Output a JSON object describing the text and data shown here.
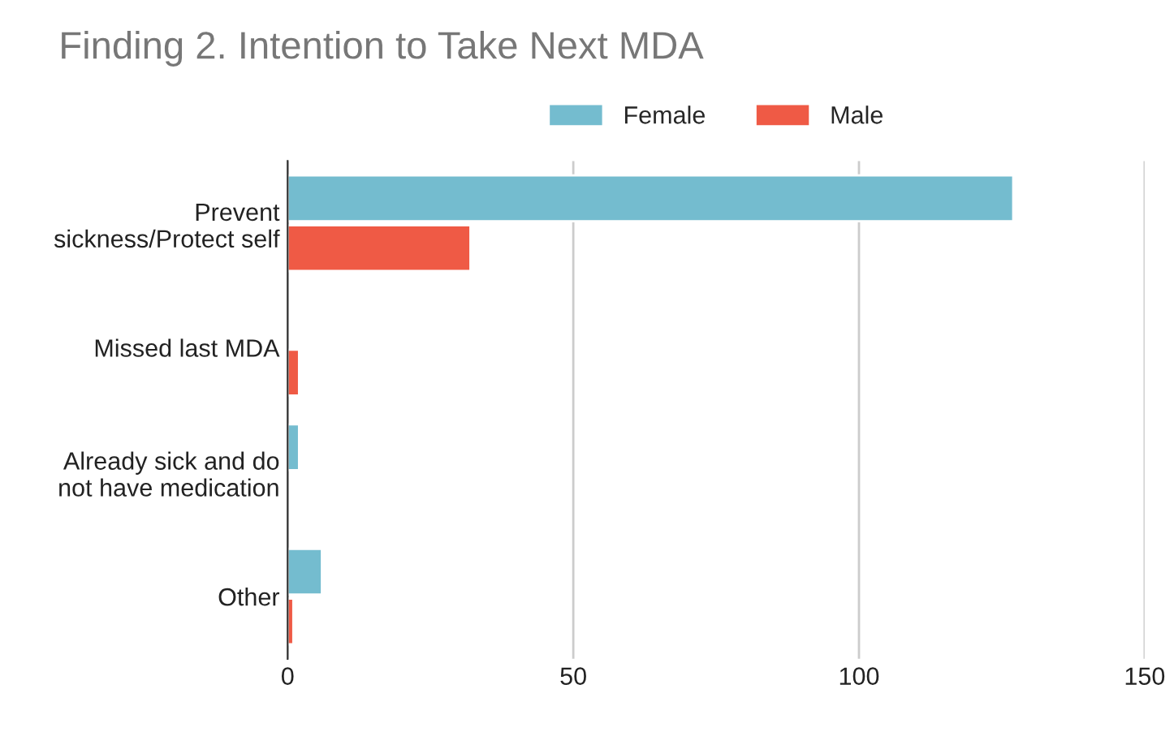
{
  "chart_data": {
    "type": "bar",
    "orientation": "horizontal",
    "title": "Finding 2. Intention to Take Next MDA",
    "categories": [
      "Prevent\nsickness/Protect self",
      "Missed last MDA",
      "Already sick and do\nnot have medication",
      "Other"
    ],
    "series": [
      {
        "name": "Female",
        "color": "#74bccf",
        "values": [
          127,
          null,
          2,
          6
        ]
      },
      {
        "name": "Male",
        "color": "#ef5a45",
        "values": [
          32,
          2,
          null,
          1
        ]
      }
    ],
    "xlim": [
      0,
      150
    ],
    "xticks": [
      0,
      50,
      100,
      150
    ],
    "grid": "x",
    "legend": "top"
  }
}
